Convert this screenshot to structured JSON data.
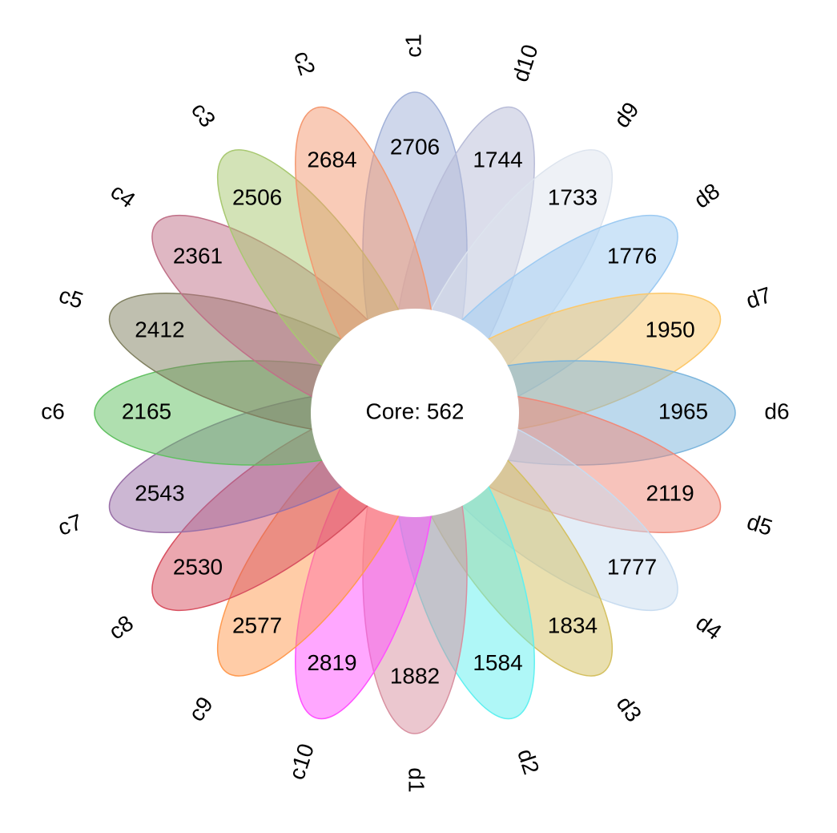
{
  "chart_data": {
    "type": "flower",
    "center_label": "Core: 562",
    "categories": [
      "c1",
      "d10",
      "d9",
      "d8",
      "d7",
      "d6",
      "d5",
      "d4",
      "d3",
      "d2",
      "d1",
      "c10",
      "c9",
      "c8",
      "c7",
      "c6",
      "c5",
      "c4",
      "c3",
      "c2"
    ],
    "values": [
      2706,
      1744,
      1733,
      1776,
      1950,
      1965,
      2119,
      1777,
      1834,
      1584,
      1882,
      2819,
      2577,
      2530,
      2543,
      2165,
      2412,
      2361,
      2506,
      2684
    ],
    "colors": [
      "#a0b0d8",
      "#b8bcd8",
      "#dde4ee",
      "#9ccaf2",
      "#fcc86a",
      "#7ab4dc",
      "#f08878",
      "#c8dcf0",
      "#d4c060",
      "#60f0f0",
      "#d890a0",
      "#ff50ff",
      "#ff9a50",
      "#d85060",
      "#9a70a8",
      "#60c060",
      "#808060",
      "#c07088",
      "#a8c870",
      "#f49870"
    ]
  }
}
